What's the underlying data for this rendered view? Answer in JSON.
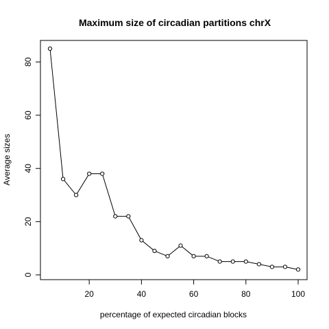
{
  "chart_data": {
    "type": "line",
    "title": "Maximum size of circadian partitions chrX",
    "xlabel": "percentage of expected circadian blocks",
    "ylabel": "Average sizes",
    "xlim": [
      5,
      100
    ],
    "ylim": [
      0,
      85
    ],
    "x_ticks": [
      20,
      40,
      60,
      80,
      100
    ],
    "y_ticks": [
      0,
      20,
      40,
      60,
      80
    ],
    "markers": "open-circle",
    "line_color": "#000000",
    "grid": false,
    "legend": "none",
    "series": [
      {
        "x": [
          5,
          10,
          15,
          20,
          25,
          30,
          35,
          40,
          45,
          50,
          55,
          60,
          65,
          70,
          75,
          80,
          85,
          90,
          95,
          100
        ],
        "y": [
          85,
          36,
          30,
          38,
          38,
          22,
          22,
          13,
          9,
          7,
          11,
          7,
          7,
          5,
          5,
          5,
          4,
          3,
          3,
          2
        ]
      }
    ]
  }
}
